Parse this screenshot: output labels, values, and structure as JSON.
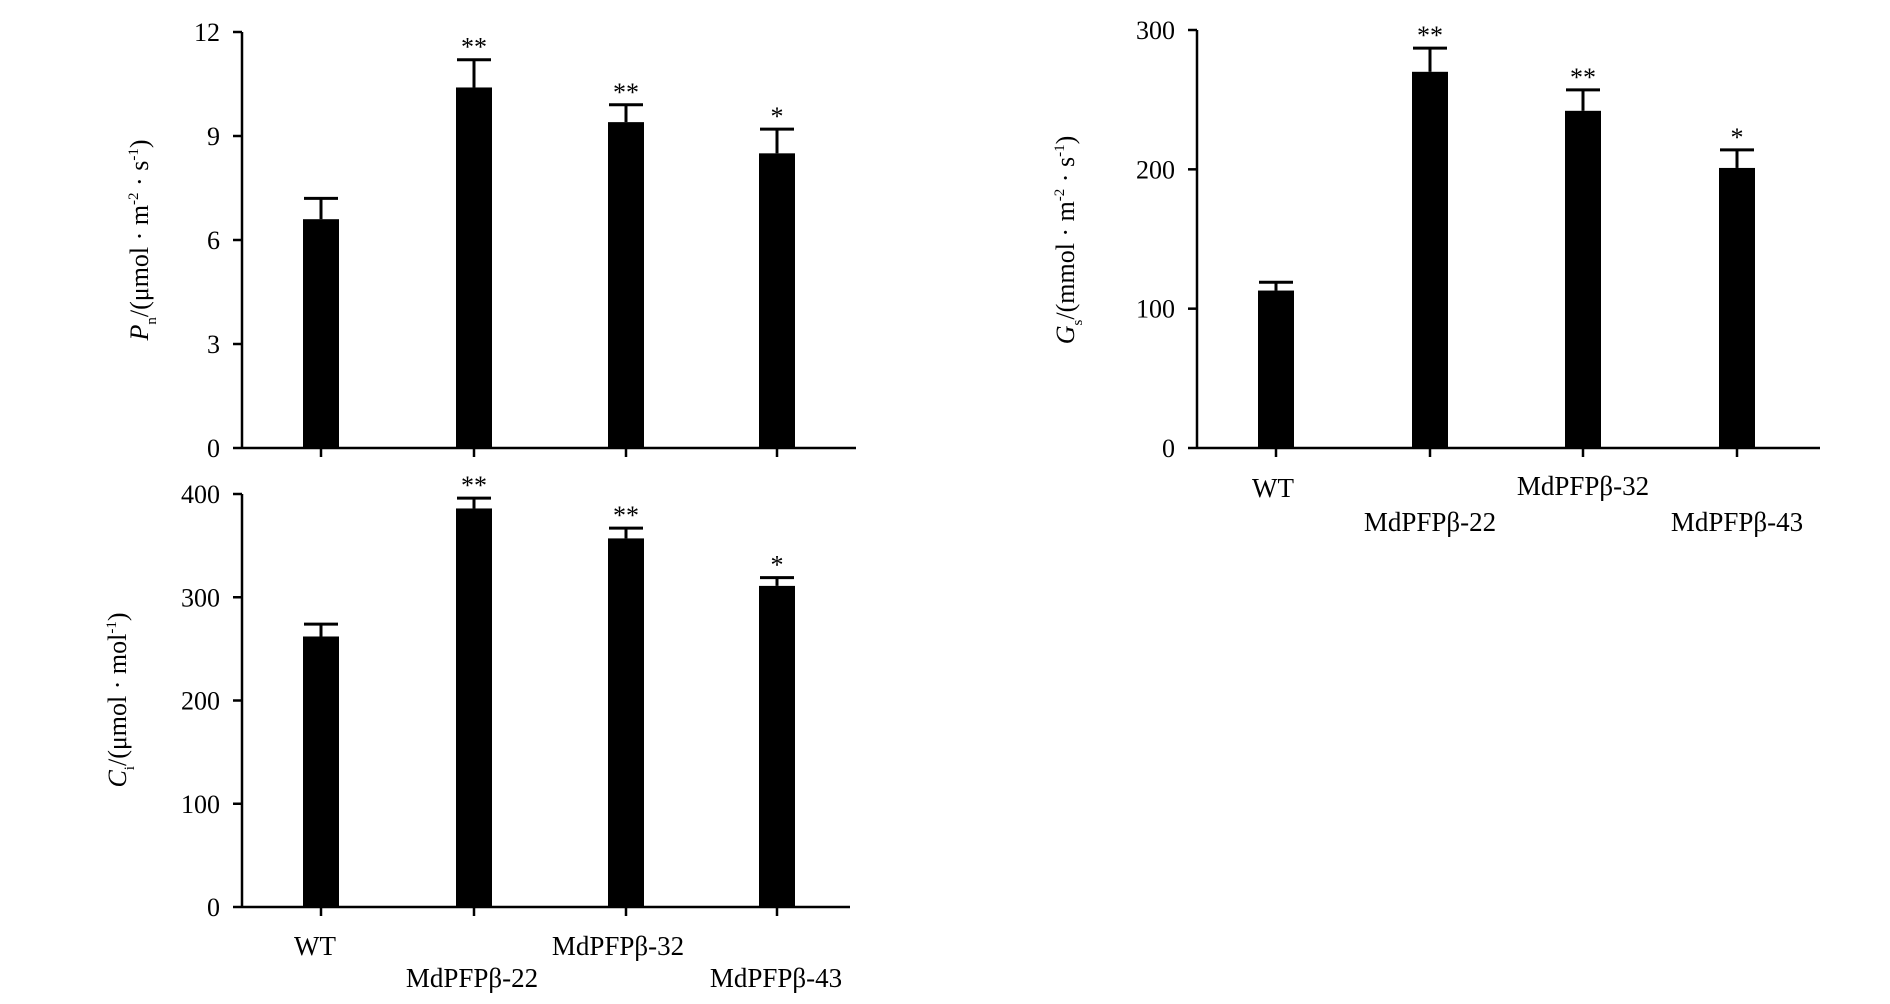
{
  "chart_data": [
    {
      "id": "pn",
      "type": "bar",
      "ylabel": {
        "symbol": "P",
        "sub": "n",
        "prefix": "/(μmol · m",
        "sup1": "-2",
        "mid": " · s",
        "sup2": "-1",
        "suffix": ")"
      },
      "categories": [
        "WT",
        "MdPFPβ-22",
        "MdPFPβ-32",
        "MdPFPβ-43"
      ],
      "values": [
        6.6,
        10.4,
        9.4,
        8.5
      ],
      "errors": [
        0.6,
        0.8,
        0.5,
        0.7
      ],
      "significance": [
        "",
        "**",
        "**",
        "*"
      ],
      "ylim": [
        0,
        12
      ],
      "yticks": [
        "0",
        "3",
        "6",
        "9",
        "12"
      ],
      "show_category_labels": false,
      "grid": false
    },
    {
      "id": "ci",
      "type": "bar",
      "ylabel": {
        "symbol": "C",
        "sub": "i",
        "prefix": "/(μmol · mol",
        "sup1": "-1",
        "mid": "",
        "sup2": "",
        "suffix": ")"
      },
      "categories": [
        "WT",
        "MdPFPβ-22",
        "MdPFPβ-32",
        "MdPFPβ-43"
      ],
      "values": [
        262,
        386,
        357,
        311
      ],
      "errors": [
        12,
        10,
        10,
        8
      ],
      "significance": [
        "",
        "**",
        "**",
        "*"
      ],
      "ylim": [
        0,
        400
      ],
      "yticks": [
        "0",
        "100",
        "200",
        "300",
        "400"
      ],
      "show_category_labels": true,
      "grid": false
    },
    {
      "id": "gs",
      "type": "bar",
      "ylabel": {
        "symbol": "G",
        "sub": "s",
        "prefix": "/(mmol · m",
        "sup1": "-2",
        "mid": " · s",
        "sup2": "-1",
        "suffix": ")"
      },
      "categories": [
        "WT",
        "MdPFPβ-22",
        "MdPFPβ-32",
        "MdPFPβ-43"
      ],
      "values": [
        113,
        270,
        242,
        201
      ],
      "errors": [
        6,
        17,
        15,
        13
      ],
      "significance": [
        "",
        "**",
        "**",
        "*"
      ],
      "ylim": [
        0,
        300
      ],
      "yticks": [
        "0",
        "100",
        "200",
        "300"
      ],
      "show_category_labels": true,
      "grid": false
    }
  ]
}
